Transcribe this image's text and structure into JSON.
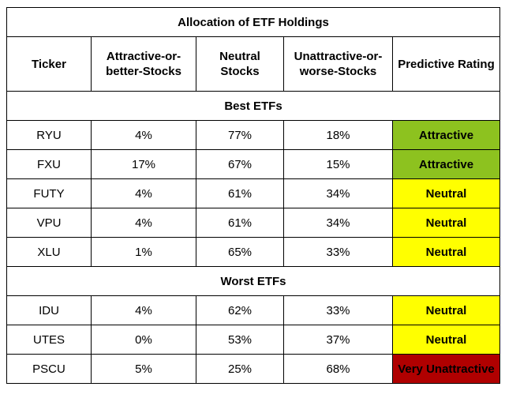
{
  "table": {
    "title": "Allocation of ETF Holdings",
    "headers": {
      "ticker": "Ticker",
      "attractive_line1": "Attractive-or-",
      "attractive_line2": "better-Stocks",
      "neutral_line1": "Neutral",
      "neutral_line2": "Stocks",
      "unattractive_line1": "Unattractive-or-",
      "unattractive_line2": "worse-Stocks",
      "rating": "Predictive Rating"
    },
    "sections": [
      {
        "label": "Best ETFs",
        "rows": [
          {
            "ticker": "RYU",
            "attractive": "4%",
            "neutral": "77%",
            "unattractive": "18%",
            "rating": "Attractive",
            "rating_color": "#8dc21f"
          },
          {
            "ticker": "FXU",
            "attractive": "17%",
            "neutral": "67%",
            "unattractive": "15%",
            "rating": "Attractive",
            "rating_color": "#8dc21f"
          },
          {
            "ticker": "FUTY",
            "attractive": "4%",
            "neutral": "61%",
            "unattractive": "34%",
            "rating": "Neutral",
            "rating_color": "#ffff00"
          },
          {
            "ticker": "VPU",
            "attractive": "4%",
            "neutral": "61%",
            "unattractive": "34%",
            "rating": "Neutral",
            "rating_color": "#ffff00"
          },
          {
            "ticker": "XLU",
            "attractive": "1%",
            "neutral": "65%",
            "unattractive": "33%",
            "rating": "Neutral",
            "rating_color": "#ffff00"
          }
        ]
      },
      {
        "label": "Worst ETFs",
        "rows": [
          {
            "ticker": "IDU",
            "attractive": "4%",
            "neutral": "62%",
            "unattractive": "33%",
            "rating": "Neutral",
            "rating_color": "#ffff00"
          },
          {
            "ticker": "UTES",
            "attractive": "0%",
            "neutral": "53%",
            "unattractive": "37%",
            "rating": "Neutral",
            "rating_color": "#ffff00"
          },
          {
            "ticker": "PSCU",
            "attractive": "5%",
            "neutral": "25%",
            "unattractive": "68%",
            "rating": "Very Unattractive",
            "rating_color": "#b00000"
          }
        ]
      }
    ]
  }
}
